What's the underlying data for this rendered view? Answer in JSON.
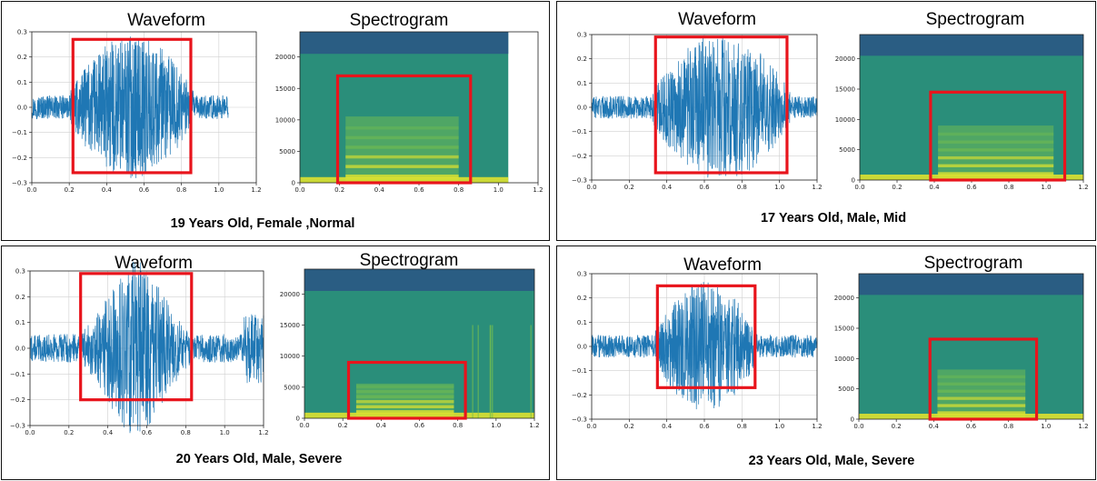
{
  "panels": [
    {
      "caption": "19 Years Old, Female ,Normal",
      "waveform_title": "Waveform",
      "spectrogram_title": "Spectrogram",
      "waveform": {
        "xticks": [
          "0.0",
          "0.2",
          "0.4",
          "0.6",
          "0.8",
          "1.0",
          "1.2"
        ],
        "yticks": [
          "0.3",
          "0.2",
          "0.1",
          "0.0",
          "−0.1",
          "−0.2",
          "−0.3"
        ],
        "xlim": [
          0,
          1.2
        ],
        "ylim": [
          -0.3,
          0.3
        ],
        "signal_end": 1.05,
        "highlight": {
          "x": [
            0.22,
            0.85
          ],
          "y": [
            -0.26,
            0.27
          ]
        }
      },
      "spectrogram": {
        "xticks": [
          "0.0",
          "0.2",
          "0.4",
          "0.6",
          "0.8",
          "1.0",
          "1.2"
        ],
        "yticks": [
          "20000",
          "15000",
          "10000",
          "5000",
          "0"
        ],
        "xlim": [
          0,
          1.2
        ],
        "ylim": [
          0,
          24000
        ],
        "signal_end": 1.05,
        "highlight": {
          "x": [
            0.19,
            0.86
          ],
          "y": [
            0,
            17000
          ]
        }
      }
    },
    {
      "caption": "17 Years Old, Male, Mid",
      "waveform_title": "Waveform",
      "spectrogram_title": "Spectrogram",
      "waveform": {
        "xticks": [
          "0.0",
          "0.2",
          "0.4",
          "0.6",
          "0.8",
          "1.0",
          "1.2"
        ],
        "yticks": [
          "0.3",
          "0.2",
          "0.1",
          "0.0",
          "−0.1",
          "−0.2",
          "−0.3"
        ],
        "xlim": [
          0,
          1.2
        ],
        "ylim": [
          -0.3,
          0.3
        ],
        "signal_end": 1.2,
        "highlight": {
          "x": [
            0.34,
            1.04
          ],
          "y": [
            -0.27,
            0.29
          ]
        }
      },
      "spectrogram": {
        "xticks": [
          "0.0",
          "0.2",
          "0.4",
          "0.6",
          "0.8",
          "1.0",
          "1.2"
        ],
        "yticks": [
          "20000",
          "15000",
          "10000",
          "5000",
          "0"
        ],
        "xlim": [
          0,
          1.2
        ],
        "ylim": [
          0,
          24000
        ],
        "signal_end": 1.2,
        "highlight": {
          "x": [
            0.38,
            1.1
          ],
          "y": [
            0,
            14500
          ]
        }
      }
    },
    {
      "caption": "20 Years Old, Male, Severe",
      "waveform_title": "Waveform",
      "spectrogram_title": "Spectrogram",
      "waveform": {
        "xticks": [
          "0.0",
          "0.2",
          "0.4",
          "0.6",
          "0.8",
          "1.0",
          "1.2"
        ],
        "yticks": [
          "0.3",
          "0.2",
          "0.1",
          "0.0",
          "−0.1",
          "−0.2",
          "−0.3"
        ],
        "xlim": [
          0,
          1.2
        ],
        "ylim": [
          -0.3,
          0.3
        ],
        "signal_end": 1.2,
        "highlight": {
          "x": [
            0.26,
            0.83
          ],
          "y": [
            -0.2,
            0.29
          ]
        }
      },
      "spectrogram": {
        "xticks": [
          "0.0",
          "0.2",
          "0.4",
          "0.6",
          "0.8",
          "1.0",
          "1.2"
        ],
        "yticks": [
          "20000",
          "15000",
          "10000",
          "5000",
          "0"
        ],
        "xlim": [
          0,
          1.2
        ],
        "ylim": [
          0,
          24000
        ],
        "signal_end": 1.2,
        "highlight": {
          "x": [
            0.23,
            0.84
          ],
          "y": [
            0,
            9000
          ]
        }
      }
    },
    {
      "caption": "23 Years Old, Male, Severe",
      "waveform_title": "Waveform",
      "spectrogram_title": "Spectrogram",
      "waveform": {
        "xticks": [
          "0.0",
          "0.2",
          "0.4",
          "0.6",
          "0.8",
          "1.0",
          "1.2"
        ],
        "yticks": [
          "0.3",
          "0.2",
          "0.1",
          "0.0",
          "−0.1",
          "−0.2",
          "−0.3"
        ],
        "xlim": [
          0,
          1.2
        ],
        "ylim": [
          -0.3,
          0.3
        ],
        "signal_end": 1.2,
        "highlight": {
          "x": [
            0.35,
            0.87
          ],
          "y": [
            -0.17,
            0.25
          ]
        }
      },
      "spectrogram": {
        "xticks": [
          "0.0",
          "0.2",
          "0.4",
          "0.6",
          "0.8",
          "1.0",
          "1.2"
        ],
        "yticks": [
          "20000",
          "15000",
          "10000",
          "5000",
          "0"
        ],
        "xlim": [
          0,
          1.2
        ],
        "ylim": [
          0,
          24000
        ],
        "signal_end": 1.2,
        "highlight": {
          "x": [
            0.38,
            0.95
          ],
          "y": [
            0,
            13200
          ]
        }
      }
    }
  ],
  "colors": {
    "waveform": "#1f77b4",
    "highlight": "#e8141c",
    "spectro_top": "#2a5d83",
    "spectro_mid": "#2a8e7a",
    "spectro_low": "#7cc34b",
    "spectro_base": "#e8e62b"
  }
}
